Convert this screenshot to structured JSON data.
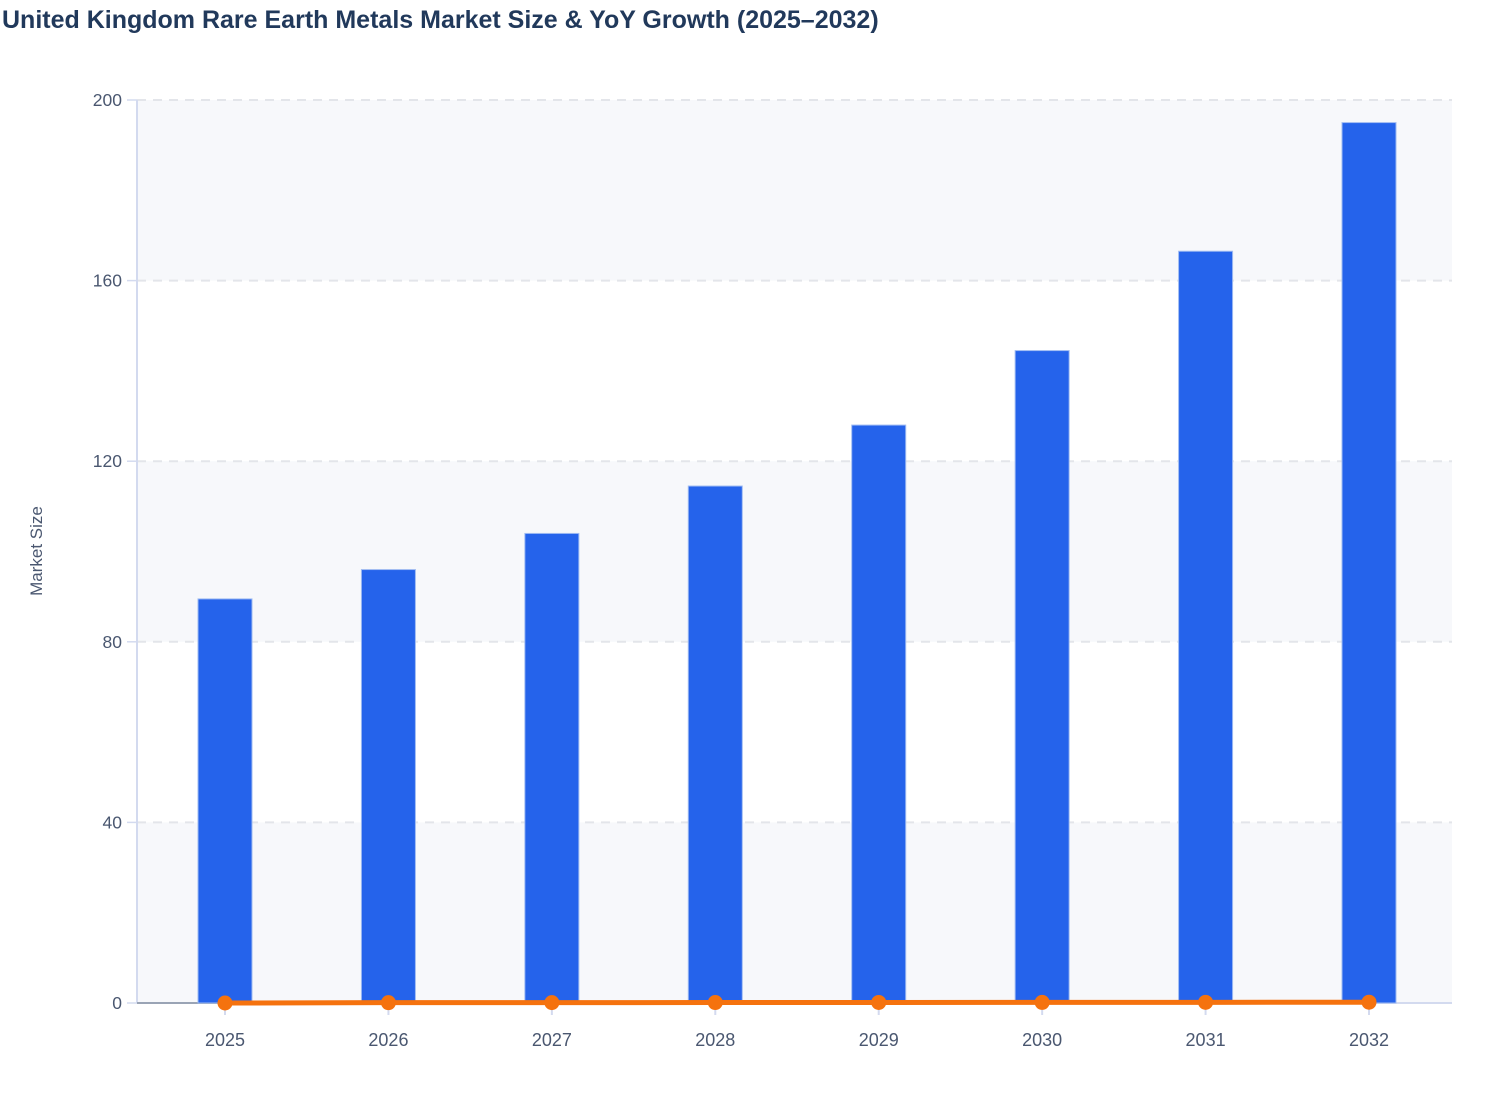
{
  "title": "United Kingdom Rare Earth Metals Market Size & YoY Growth (2025–2032)",
  "colors": {
    "bar_fill": "#2563EB",
    "bar_edge": "#9FBBF2",
    "line_color": "#F5720E",
    "title_color": "#21395B",
    "axis_label_color": "#4A5770",
    "band_fill": "#F7F8FB",
    "grid_color": "#E3E5EA",
    "axis_line_color": "#D3DAEF",
    "zero_line_color": "#9AA4B5"
  },
  "chart_data": {
    "type": "bar",
    "title": "United Kingdom Rare Earth Metals Market Size & YoY Growth (2025–2032)",
    "categories": [
      "2025",
      "2026",
      "2027",
      "2028",
      "2029",
      "2030",
      "2031",
      "2032"
    ],
    "series": [
      {
        "name": "Market Size",
        "type": "bar",
        "color": "#2563EB",
        "values": [
          89.5,
          96,
          104,
          114.5,
          128,
          144.5,
          166.5,
          195
        ]
      },
      {
        "name": "YoY Growth",
        "type": "line",
        "color": "#F5720E",
        "values": [
          0,
          0.073,
          0.083,
          0.101,
          0.118,
          0.129,
          0.152,
          0.171
        ],
        "note": "plots flat at ~0 on the 0–200 left axis"
      }
    ],
    "xlabel": "",
    "ylabel": "Market Size",
    "ylim": [
      0,
      200
    ],
    "yticks": [
      0,
      40,
      80,
      120,
      160,
      200
    ],
    "grid": "horizontal dashed lines every 40, alternating shaded bands",
    "legend": "none"
  }
}
